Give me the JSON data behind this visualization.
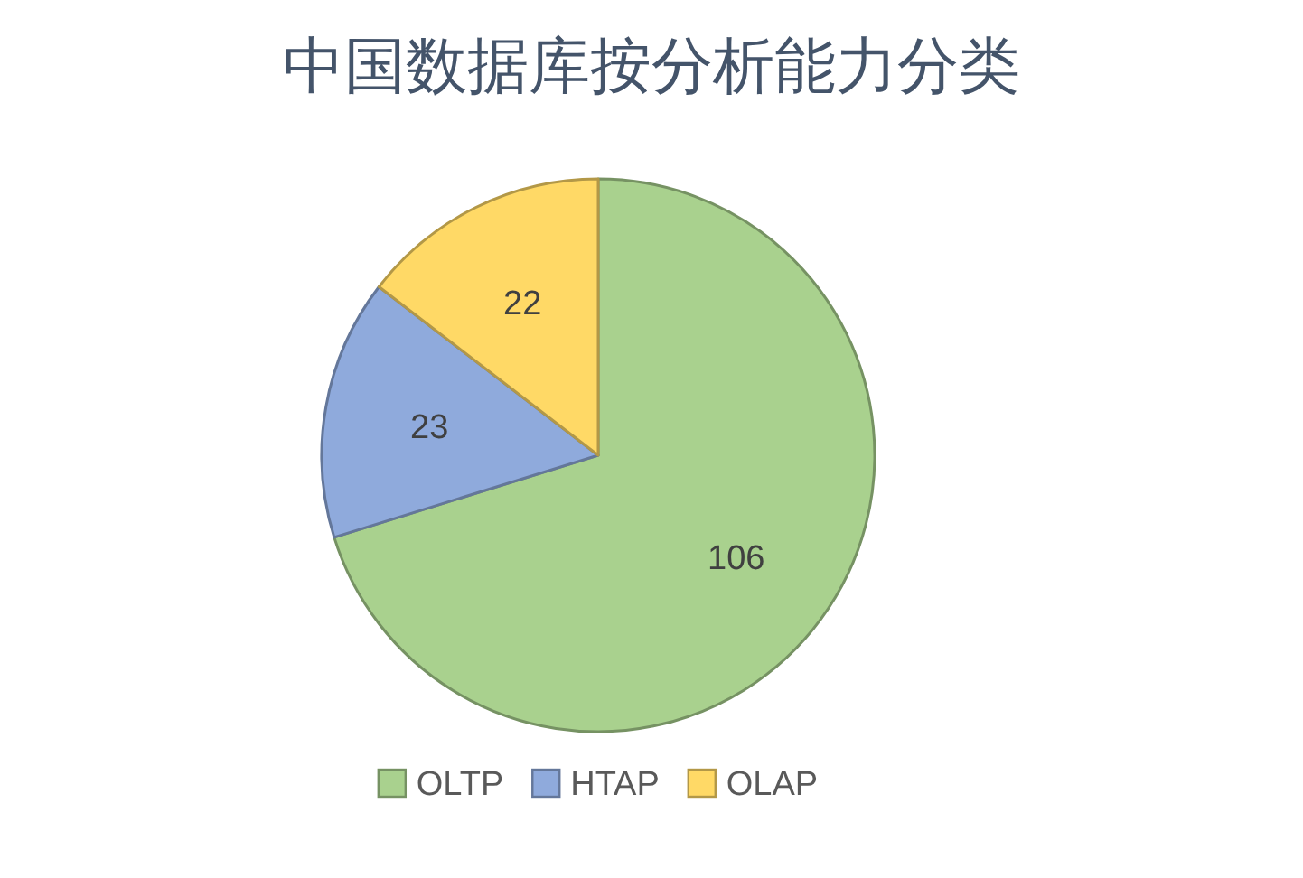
{
  "chart_data": {
    "type": "pie",
    "title": "中国数据库按分析能力分类",
    "categories": [
      "OLTP",
      "HTAP",
      "OLAP"
    ],
    "values": [
      106,
      23,
      22
    ],
    "colors": [
      "#a9d18e",
      "#8faadc",
      "#ffd966"
    ],
    "data_labels": true,
    "legend": "bottom"
  }
}
